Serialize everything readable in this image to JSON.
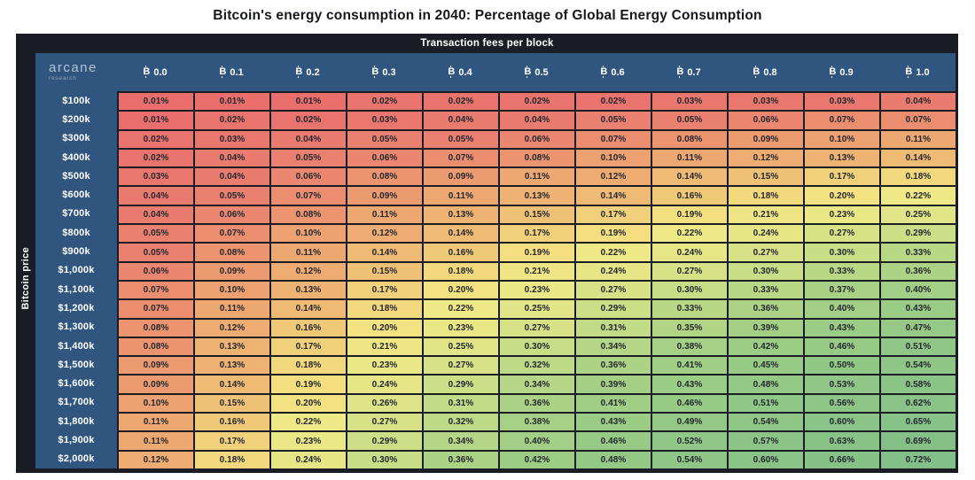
{
  "page_title": "Bitcoin's energy consumption in 2040: Percentage of Global Energy Consumption",
  "table_header": "Transaction fees per block",
  "left_axis_label": "Bitcoin price",
  "logo": {
    "brand": "arcane",
    "sub": "research"
  },
  "icons": {
    "bitcoin_symbol_render": "B",
    "bitcoin_symbol_unicode": "₿"
  },
  "colors": {
    "board_background": "#1a1d23",
    "header_blue": "#30567f",
    "header_text": "#ffffff",
    "cell_text": "#23262e",
    "title_text": "#16181d"
  },
  "chart_data": {
    "type": "heatmap",
    "title": "Bitcoin's energy consumption in 2040: Percentage of Global Energy Consumption",
    "x_axis_label": "Transaction fees per block",
    "y_axis_label": "Bitcoin price",
    "x_tick_symbol": "₿",
    "x_tick_values": [
      "0.0",
      "0.1",
      "0.2",
      "0.3",
      "0.4",
      "0.5",
      "0.6",
      "0.7",
      "0.8",
      "0.9",
      "1.0"
    ],
    "y_ticks": [
      "$100k",
      "$200k",
      "$300k",
      "$400k",
      "$500k",
      "$600k",
      "$700k",
      "$800k",
      "$900k",
      "$1,000k",
      "$1,100k",
      "$1,200k",
      "$1,300k",
      "$1,400k",
      "$1,500k",
      "$1,600k",
      "$1,700k",
      "$1,800k",
      "$1,900k",
      "$2,000k"
    ],
    "value_unit": "% of global energy consumption",
    "value_format": "2 decimals + %",
    "values": [
      [
        0.01,
        0.01,
        0.01,
        0.02,
        0.02,
        0.02,
        0.02,
        0.03,
        0.03,
        0.03,
        0.04
      ],
      [
        0.01,
        0.02,
        0.02,
        0.03,
        0.04,
        0.04,
        0.05,
        0.05,
        0.06,
        0.07,
        0.07
      ],
      [
        0.02,
        0.03,
        0.04,
        0.05,
        0.05,
        0.06,
        0.07,
        0.08,
        0.09,
        0.1,
        0.11
      ],
      [
        0.02,
        0.04,
        0.05,
        0.06,
        0.07,
        0.08,
        0.1,
        0.11,
        0.12,
        0.13,
        0.14
      ],
      [
        0.03,
        0.04,
        0.06,
        0.08,
        0.09,
        0.11,
        0.12,
        0.14,
        0.15,
        0.17,
        0.18
      ],
      [
        0.04,
        0.05,
        0.07,
        0.09,
        0.11,
        0.13,
        0.14,
        0.16,
        0.18,
        0.2,
        0.22
      ],
      [
        0.04,
        0.06,
        0.08,
        0.11,
        0.13,
        0.15,
        0.17,
        0.19,
        0.21,
        0.23,
        0.25
      ],
      [
        0.05,
        0.07,
        0.1,
        0.12,
        0.14,
        0.17,
        0.19,
        0.22,
        0.24,
        0.27,
        0.29
      ],
      [
        0.05,
        0.08,
        0.11,
        0.14,
        0.16,
        0.19,
        0.22,
        0.24,
        0.27,
        0.3,
        0.33
      ],
      [
        0.06,
        0.09,
        0.12,
        0.15,
        0.18,
        0.21,
        0.24,
        0.27,
        0.3,
        0.33,
        0.36
      ],
      [
        0.07,
        0.1,
        0.13,
        0.17,
        0.2,
        0.23,
        0.27,
        0.3,
        0.33,
        0.37,
        0.4
      ],
      [
        0.07,
        0.11,
        0.14,
        0.18,
        0.22,
        0.25,
        0.29,
        0.33,
        0.36,
        0.4,
        0.43
      ],
      [
        0.08,
        0.12,
        0.16,
        0.2,
        0.23,
        0.27,
        0.31,
        0.35,
        0.39,
        0.43,
        0.47
      ],
      [
        0.08,
        0.13,
        0.17,
        0.21,
        0.25,
        0.3,
        0.34,
        0.38,
        0.42,
        0.46,
        0.51
      ],
      [
        0.09,
        0.13,
        0.18,
        0.23,
        0.27,
        0.32,
        0.36,
        0.41,
        0.45,
        0.5,
        0.54
      ],
      [
        0.09,
        0.14,
        0.19,
        0.24,
        0.29,
        0.34,
        0.39,
        0.43,
        0.48,
        0.53,
        0.58
      ],
      [
        0.1,
        0.15,
        0.2,
        0.26,
        0.31,
        0.36,
        0.41,
        0.46,
        0.51,
        0.56,
        0.62
      ],
      [
        0.11,
        0.16,
        0.22,
        0.27,
        0.32,
        0.38,
        0.43,
        0.49,
        0.54,
        0.6,
        0.65
      ],
      [
        0.11,
        0.17,
        0.23,
        0.29,
        0.34,
        0.4,
        0.46,
        0.52,
        0.57,
        0.63,
        0.69
      ],
      [
        0.12,
        0.18,
        0.24,
        0.3,
        0.36,
        0.42,
        0.48,
        0.54,
        0.6,
        0.66,
        0.72
      ]
    ],
    "value_range": [
      0.01,
      0.72
    ],
    "color_scale_anchors": [
      {
        "value": 0.01,
        "color": "#e96e6c"
      },
      {
        "value": 0.05,
        "color": "#ea8070"
      },
      {
        "value": 0.09,
        "color": "#ec9b70"
      },
      {
        "value": 0.13,
        "color": "#eeb272"
      },
      {
        "value": 0.16,
        "color": "#f0c978"
      },
      {
        "value": 0.19,
        "color": "#f3df80"
      },
      {
        "value": 0.22,
        "color": "#efe886"
      },
      {
        "value": 0.26,
        "color": "#dce487"
      },
      {
        "value": 0.31,
        "color": "#c2db86"
      },
      {
        "value": 0.37,
        "color": "#a8d185"
      },
      {
        "value": 0.45,
        "color": "#97ca85"
      },
      {
        "value": 0.58,
        "color": "#8bc487"
      },
      {
        "value": 0.72,
        "color": "#83bf88"
      }
    ],
    "legend": "none",
    "grid": "dark 2px gridlines between cells"
  }
}
